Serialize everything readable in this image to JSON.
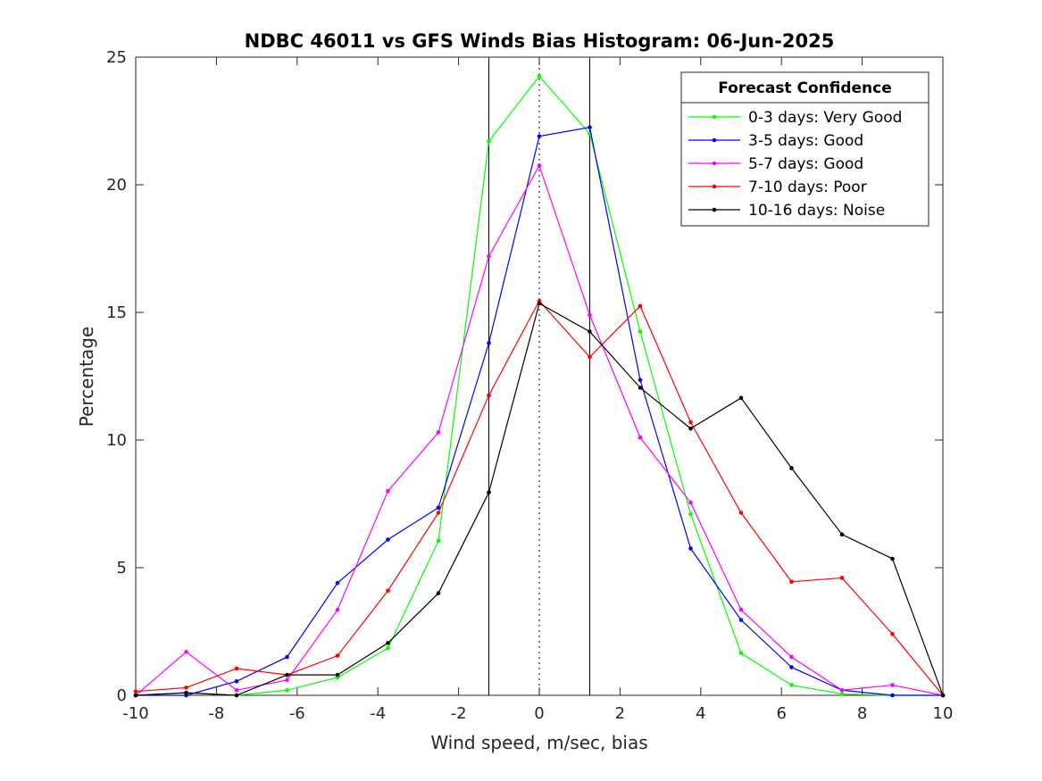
{
  "chart_data": {
    "type": "line",
    "title": "NDBC 46011 vs GFS Winds Bias Histogram: 06-Jun-2025",
    "xlabel": "Wind speed, m/sec, bias",
    "ylabel": "Percentage",
    "xlim": [
      -10,
      10
    ],
    "ylim": [
      0,
      25
    ],
    "xticks": [
      -10,
      -8,
      -6,
      -4,
      -2,
      0,
      2,
      4,
      6,
      8,
      10
    ],
    "yticks": [
      0,
      5,
      10,
      15,
      20,
      25
    ],
    "grid": false,
    "legend_title": "Forecast Confidence",
    "legend_position": "top-right",
    "vertical_lines": {
      "solid": [
        -1.25,
        1.25
      ],
      "dotted": [
        0
      ]
    },
    "x": [
      -10,
      -8.75,
      -7.5,
      -6.25,
      -5,
      -3.75,
      -2.5,
      -1.25,
      0,
      1.25,
      2.5,
      3.75,
      5,
      6.25,
      7.5,
      8.75,
      10
    ],
    "series": [
      {
        "name": "0-3 days: Very Good",
        "color": "#00ff00",
        "values": [
          0,
          0.1,
          0,
          0.2,
          0.7,
          1.85,
          6.05,
          21.7,
          24.25,
          22.0,
          14.25,
          7.1,
          1.65,
          0.4,
          0.05,
          0,
          0
        ]
      },
      {
        "name": "3-5 days: Good",
        "color": "#0000ff",
        "values": [
          0,
          0,
          0.55,
          1.5,
          4.4,
          6.1,
          7.35,
          13.8,
          21.9,
          22.25,
          12.35,
          5.75,
          2.95,
          1.1,
          0.2,
          0,
          0
        ]
      },
      {
        "name": "5-7 days: Good",
        "color": "#ff00ff",
        "values": [
          0,
          1.7,
          0.2,
          0.6,
          3.35,
          8.0,
          10.3,
          17.2,
          20.75,
          14.9,
          10.1,
          7.55,
          3.35,
          1.5,
          0.2,
          0.4,
          0
        ]
      },
      {
        "name": "7-10 days: Poor",
        "color": "#ff0000",
        "values": [
          0.15,
          0.3,
          1.05,
          0.8,
          1.55,
          4.1,
          7.15,
          11.75,
          15.45,
          13.25,
          15.25,
          10.7,
          7.15,
          4.45,
          4.6,
          2.4,
          0
        ]
      },
      {
        "name": "10-16 days: Noise",
        "color": "#000000",
        "values": [
          0,
          0.1,
          0,
          0.8,
          0.8,
          2.05,
          4.0,
          7.95,
          15.35,
          14.25,
          12.05,
          10.45,
          11.65,
          8.9,
          6.3,
          5.35,
          0
        ]
      }
    ]
  }
}
